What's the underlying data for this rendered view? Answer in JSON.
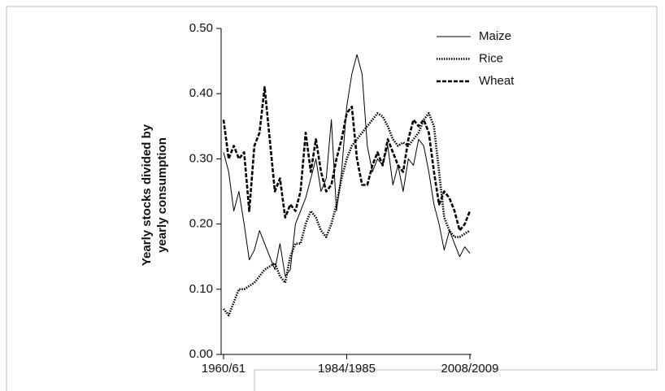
{
  "chart_data": {
    "type": "line",
    "ylabel_lines": [
      "Yearly stocks divided by",
      "yearly consumption"
    ],
    "categories": [
      "1960/61",
      null,
      null,
      null,
      null,
      null,
      null,
      null,
      null,
      null,
      null,
      null,
      null,
      null,
      null,
      null,
      null,
      null,
      null,
      null,
      null,
      null,
      null,
      null,
      "1984/1985",
      null,
      null,
      null,
      null,
      null,
      null,
      null,
      null,
      null,
      null,
      null,
      null,
      null,
      null,
      null,
      null,
      null,
      null,
      null,
      null,
      null,
      null,
      null,
      "2008/2009"
    ],
    "series": [
      {
        "name": "Maize",
        "color": "#000000",
        "style": "solid",
        "values": [
          0.31,
          0.28,
          0.22,
          0.25,
          0.2,
          0.145,
          0.16,
          0.19,
          0.17,
          0.15,
          0.13,
          0.17,
          0.12,
          0.13,
          0.2,
          0.22,
          0.24,
          0.27,
          0.3,
          0.25,
          0.27,
          0.36,
          0.22,
          0.28,
          0.38,
          0.43,
          0.46,
          0.43,
          0.32,
          0.28,
          0.3,
          0.29,
          0.32,
          0.26,
          0.29,
          0.25,
          0.3,
          0.29,
          0.33,
          0.32,
          0.28,
          0.23,
          0.2,
          0.16,
          0.19,
          0.17,
          0.15,
          0.165,
          0.155
        ]
      },
      {
        "name": "Rice",
        "color": "#000000",
        "style": "dotted",
        "values": [
          0.07,
          0.06,
          0.08,
          0.1,
          0.1,
          0.105,
          0.11,
          0.12,
          0.13,
          0.135,
          0.14,
          0.12,
          0.11,
          0.15,
          0.17,
          0.17,
          0.2,
          0.22,
          0.21,
          0.19,
          0.18,
          0.2,
          0.23,
          0.27,
          0.3,
          0.32,
          0.33,
          0.34,
          0.35,
          0.36,
          0.37,
          0.365,
          0.35,
          0.33,
          0.32,
          0.325,
          0.32,
          0.33,
          0.34,
          0.36,
          0.37,
          0.35,
          0.28,
          0.21,
          0.19,
          0.18,
          0.18,
          0.185,
          0.19
        ]
      },
      {
        "name": "Wheat",
        "color": "#000000",
        "style": "dashed",
        "values": [
          0.36,
          0.3,
          0.32,
          0.3,
          0.31,
          0.22,
          0.32,
          0.34,
          0.41,
          0.33,
          0.25,
          0.27,
          0.21,
          0.23,
          0.22,
          0.25,
          0.34,
          0.28,
          0.33,
          0.28,
          0.25,
          0.26,
          0.3,
          0.33,
          0.37,
          0.38,
          0.3,
          0.26,
          0.26,
          0.29,
          0.31,
          0.29,
          0.33,
          0.31,
          0.29,
          0.28,
          0.33,
          0.36,
          0.35,
          0.36,
          0.34,
          0.28,
          0.23,
          0.25,
          0.24,
          0.22,
          0.19,
          0.2,
          0.22
        ]
      }
    ],
    "ylim": [
      0,
      0.5
    ],
    "yticks": [
      {
        "value": 0,
        "label": "0.00"
      },
      {
        "value": 0.1,
        "label": "0.10"
      },
      {
        "value": 0.2,
        "label": "0.20"
      },
      {
        "value": 0.3,
        "label": "0.30"
      },
      {
        "value": 0.4,
        "label": "0.40"
      },
      {
        "value": 0.5,
        "label": "0.50"
      }
    ],
    "legend": "top-right"
  }
}
